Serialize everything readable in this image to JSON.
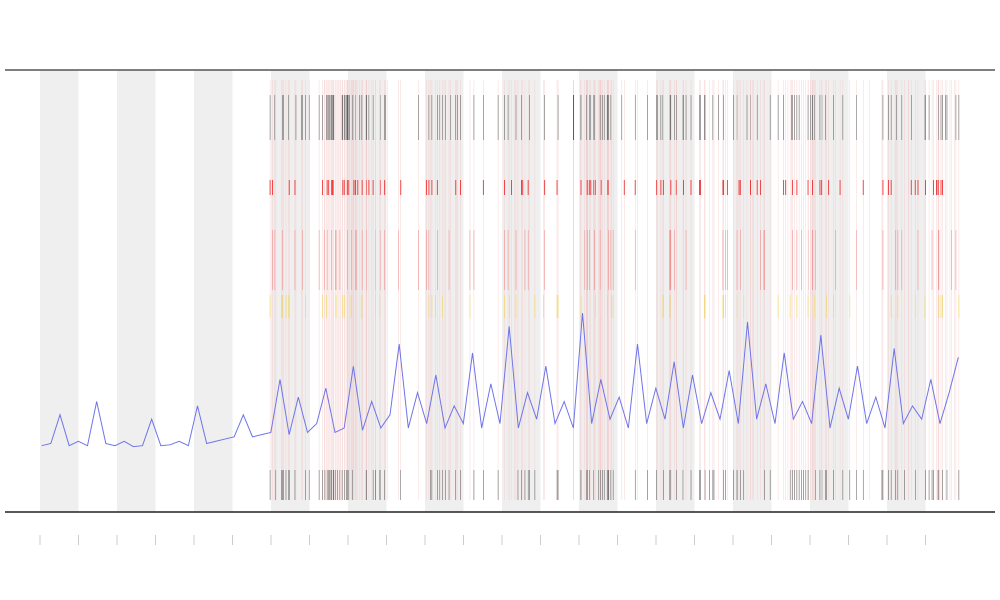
{
  "chart_data": {
    "type": "line",
    "x": [
      0,
      1,
      2,
      3,
      4,
      5,
      6,
      7,
      8,
      9,
      10,
      11,
      12,
      13,
      14,
      15,
      16,
      17,
      18,
      19,
      20,
      21,
      22,
      23,
      24,
      25,
      26,
      27,
      28,
      29,
      30,
      31,
      32,
      33,
      34,
      35,
      36,
      37,
      38,
      39,
      40,
      41,
      42,
      43,
      44,
      45,
      46,
      47,
      48,
      49,
      50,
      51,
      52,
      53,
      54,
      55,
      56,
      57,
      58,
      59,
      60,
      61,
      62,
      63,
      64,
      65,
      66,
      67,
      68,
      69,
      70,
      71,
      72,
      73,
      74,
      75,
      76,
      77,
      78,
      79,
      80,
      81,
      82,
      83,
      84,
      85,
      86,
      87,
      88,
      89,
      90,
      91,
      92,
      93,
      94,
      95,
      96,
      97,
      98,
      99,
      100
    ],
    "series": [
      {
        "color": "#6f74e8",
        "values": [
          15,
          15.5,
          22,
          15,
          16,
          15,
          25,
          15.5,
          15,
          16,
          14.8,
          15,
          21,
          15,
          15.2,
          16,
          15,
          24,
          15.5,
          16,
          16.5,
          17,
          22,
          17,
          17.5,
          18,
          30,
          17.5,
          26,
          18,
          20,
          28,
          18,
          19,
          33,
          18.5,
          25,
          19,
          22,
          38,
          19,
          27,
          20,
          31,
          19,
          24,
          20,
          36,
          19,
          29,
          20,
          42,
          19,
          27,
          21,
          33,
          20,
          25,
          19,
          45,
          20,
          30,
          21,
          26,
          19,
          38,
          20,
          28,
          21,
          34,
          19,
          31,
          20,
          27,
          21,
          32,
          20,
          43,
          21,
          29,
          20,
          36,
          21,
          25,
          20,
          40,
          19,
          28,
          21,
          33,
          20,
          26,
          19,
          37,
          20,
          24,
          21,
          30,
          20,
          27,
          35
        ]
      }
    ],
    "xlim": [
      -4,
      104
    ],
    "ylim": [
      0,
      100
    ]
  }
}
